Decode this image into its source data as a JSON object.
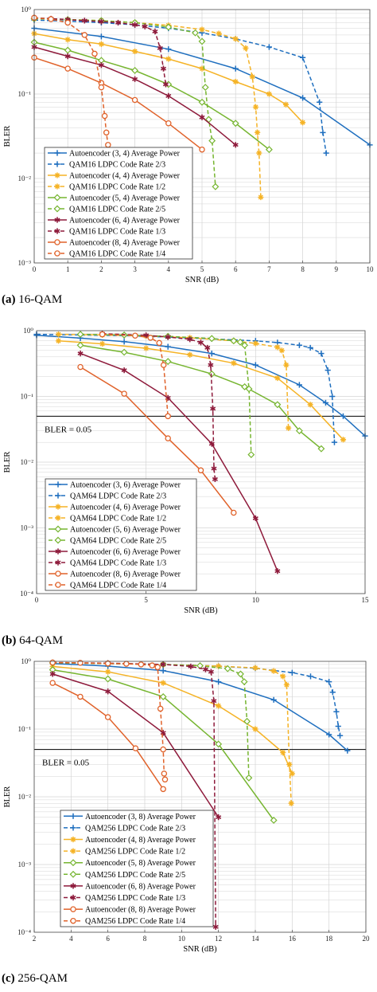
{
  "colors": {
    "s3": "#1f6fbf",
    "s4": "#f5b326",
    "s5": "#76b530",
    "s6": "#8e1a3b",
    "s8": "#e0622a",
    "grid": "#d4d4d4",
    "threshold": "#000000"
  },
  "captions": [
    {
      "letter": "(a)",
      "text": " 16-QAM"
    },
    {
      "letter": "(b)",
      "text": " 64-QAM"
    },
    {
      "letter": "(c)",
      "text": " 256-QAM"
    }
  ],
  "chart_data": [
    {
      "type": "line",
      "id": "a",
      "title": "",
      "xlabel": "SNR (dB)",
      "ylabel": "BLER",
      "xlim": [
        0,
        10
      ],
      "ylim": [
        0.001,
        1
      ],
      "yscale": "log",
      "grid": true,
      "legend_position": "bottom-left",
      "xticks": [
        "0",
        "1",
        "2",
        "3",
        "4",
        "5",
        "6",
        "7",
        "8",
        "9",
        "10"
      ],
      "yticks": [
        "10⁻³",
        "10⁻²",
        "10⁻¹",
        "10⁰"
      ],
      "threshold": null,
      "series": [
        {
          "name": "Autoencoder (3, 4) Average Power",
          "color_key": "s3",
          "dashed": false,
          "marker": "plus",
          "x": [
            0,
            2,
            4,
            6,
            8,
            10
          ],
          "y": [
            0.6,
            0.48,
            0.34,
            0.2,
            0.09,
            0.025
          ]
        },
        {
          "name": "QAM16 LDPC Code Rate 2/3",
          "color_key": "s3",
          "dashed": true,
          "marker": "plus",
          "x": [
            0,
            1,
            2,
            3,
            4,
            5,
            6,
            7,
            8,
            8.5,
            8.6,
            8.7
          ],
          "y": [
            0.75,
            0.73,
            0.7,
            0.66,
            0.6,
            0.53,
            0.45,
            0.36,
            0.27,
            0.08,
            0.035,
            0.02
          ]
        },
        {
          "name": "Autoencoder (4, 4) Average Power",
          "color_key": "s4",
          "dashed": false,
          "marker": "star",
          "x": [
            0,
            1,
            2,
            3,
            4,
            5,
            6,
            7,
            7.5,
            8
          ],
          "y": [
            0.52,
            0.44,
            0.39,
            0.32,
            0.26,
            0.2,
            0.14,
            0.1,
            0.075,
            0.046
          ]
        },
        {
          "name": "QAM16 LDPC Code Rate 1/2",
          "color_key": "s4",
          "dashed": true,
          "marker": "star",
          "x": [
            0,
            1,
            2,
            3,
            4,
            5,
            5.5,
            6,
            6.3,
            6.5,
            6.6,
            6.65,
            6.7,
            6.75
          ],
          "y": [
            0.78,
            0.76,
            0.74,
            0.7,
            0.65,
            0.58,
            0.52,
            0.45,
            0.35,
            0.16,
            0.07,
            0.035,
            0.02,
            0.006
          ]
        },
        {
          "name": "Autoencoder (5, 4) Average Power",
          "color_key": "s5",
          "dashed": false,
          "marker": "diamond",
          "x": [
            0,
            1,
            2,
            3,
            4,
            5,
            6,
            7
          ],
          "y": [
            0.41,
            0.33,
            0.25,
            0.19,
            0.13,
            0.08,
            0.045,
            0.022
          ]
        },
        {
          "name": "QAM16 LDPC Code Rate 2/5",
          "color_key": "s5",
          "dashed": true,
          "marker": "diamond",
          "x": [
            0,
            1,
            2,
            3,
            4,
            4.8,
            5,
            5.1,
            5.2,
            5.3,
            5.4
          ],
          "y": [
            0.78,
            0.76,
            0.74,
            0.7,
            0.62,
            0.53,
            0.42,
            0.12,
            0.05,
            0.028,
            0.008
          ]
        },
        {
          "name": "Autoencoder (6, 4) Average Power",
          "color_key": "s6",
          "dashed": false,
          "marker": "asterisk",
          "x": [
            0,
            1,
            2,
            3,
            4,
            5,
            6
          ],
          "y": [
            0.36,
            0.28,
            0.22,
            0.15,
            0.095,
            0.053,
            0.025
          ]
        },
        {
          "name": "QAM16 LDPC Code Rate 1/3",
          "color_key": "s6",
          "dashed": true,
          "marker": "asterisk",
          "x": [
            0,
            0.5,
            1,
            1.5,
            2,
            2.5,
            3,
            3.3,
            3.6,
            3.75,
            3.85,
            3.92
          ],
          "y": [
            0.8,
            0.78,
            0.76,
            0.74,
            0.72,
            0.7,
            0.66,
            0.63,
            0.55,
            0.35,
            0.2,
            0.13
          ]
        },
        {
          "name": "Autoencoder (8, 4) Average Power",
          "color_key": "s8",
          "dashed": false,
          "marker": "circle",
          "x": [
            0,
            1,
            2,
            3,
            4,
            5
          ],
          "y": [
            0.27,
            0.2,
            0.135,
            0.085,
            0.045,
            0.022
          ]
        },
        {
          "name": "QAM16 LDPC Code Rate 1/4",
          "color_key": "s8",
          "dashed": true,
          "marker": "circle",
          "x": [
            0,
            0.5,
            1,
            1.5,
            1.8,
            2.0,
            2.1,
            2.15,
            2.2
          ],
          "y": [
            0.8,
            0.77,
            0.7,
            0.5,
            0.3,
            0.12,
            0.055,
            0.035,
            0.025
          ]
        }
      ]
    },
    {
      "type": "line",
      "id": "b",
      "title": "",
      "xlabel": "SNR (dB)",
      "ylabel": "BLER",
      "xlim": [
        0,
        15
      ],
      "ylim": [
        0.0001,
        1
      ],
      "yscale": "log",
      "grid": true,
      "legend_position": "bottom-left",
      "xticks": [
        "0",
        "5",
        "10",
        "15"
      ],
      "yticks": [
        "10⁻⁴",
        "10⁻³",
        "10⁻²",
        "10⁻¹",
        "10⁰"
      ],
      "threshold": {
        "value": 0.05,
        "label": "BLER = 0.05"
      },
      "series": [
        {
          "name": "Autoencoder (3, 6) Average Power",
          "color_key": "s3",
          "dashed": false,
          "marker": "plus",
          "x": [
            0,
            2,
            4,
            6,
            8,
            10,
            12,
            13.2,
            14,
            15
          ],
          "y": [
            0.85,
            0.77,
            0.68,
            0.57,
            0.45,
            0.3,
            0.15,
            0.08,
            0.05,
            0.025
          ]
        },
        {
          "name": "QAM64 LDPC Code Rate 2/3",
          "color_key": "s3",
          "dashed": true,
          "marker": "plus",
          "x": [
            0,
            2,
            4,
            6,
            8,
            10,
            11,
            12,
            12.5,
            13,
            13.3,
            13.5,
            13.6
          ],
          "y": [
            0.88,
            0.86,
            0.84,
            0.8,
            0.75,
            0.7,
            0.66,
            0.6,
            0.55,
            0.45,
            0.25,
            0.1,
            0.02
          ]
        },
        {
          "name": "Autoencoder (4, 6) Average Power",
          "color_key": "s4",
          "dashed": false,
          "marker": "star",
          "x": [
            1,
            3,
            5,
            7,
            9,
            11,
            12.5,
            14
          ],
          "y": [
            0.7,
            0.63,
            0.54,
            0.43,
            0.32,
            0.19,
            0.075,
            0.022
          ]
        },
        {
          "name": "QAM64 LDPC Code Rate 1/2",
          "color_key": "s4",
          "dashed": true,
          "marker": "star",
          "x": [
            1,
            3,
            5,
            7,
            9,
            10,
            11,
            11.2,
            11.4,
            11.5
          ],
          "y": [
            0.88,
            0.86,
            0.83,
            0.78,
            0.7,
            0.64,
            0.56,
            0.5,
            0.3,
            0.033
          ]
        },
        {
          "name": "Autoencoder (5, 6) Average Power",
          "color_key": "s5",
          "dashed": false,
          "marker": "diamond",
          "x": [
            2,
            4,
            6,
            8,
            9.5,
            11,
            12,
            13
          ],
          "y": [
            0.6,
            0.47,
            0.34,
            0.22,
            0.14,
            0.075,
            0.03,
            0.016
          ]
        },
        {
          "name": "QAM64 LDPC Code Rate 2/5",
          "color_key": "s5",
          "dashed": true,
          "marker": "diamond",
          "x": [
            2,
            4,
            6,
            8,
            9,
            9.3,
            9.5,
            9.7,
            9.8
          ],
          "y": [
            0.88,
            0.86,
            0.82,
            0.76,
            0.7,
            0.67,
            0.6,
            0.13,
            0.013
          ]
        },
        {
          "name": "Autoencoder (6, 6) Average Power",
          "color_key": "s6",
          "dashed": false,
          "marker": "asterisk",
          "x": [
            2,
            4,
            6,
            8,
            10,
            11
          ],
          "y": [
            0.45,
            0.25,
            0.095,
            0.019,
            0.0014,
            0.00022
          ]
        },
        {
          "name": "QAM64 LDPC Code Rate 1/3",
          "color_key": "s6",
          "dashed": true,
          "marker": "asterisk",
          "x": [
            3,
            5,
            6,
            7,
            7.5,
            7.8,
            7.95,
            8.05,
            8.1,
            8.15
          ],
          "y": [
            0.9,
            0.85,
            0.8,
            0.74,
            0.66,
            0.55,
            0.3,
            0.065,
            0.008,
            0.0055
          ]
        },
        {
          "name": "Autoencoder (8, 6) Average Power",
          "color_key": "s8",
          "dashed": false,
          "marker": "circle",
          "x": [
            2,
            4,
            6,
            7.5,
            9
          ],
          "y": [
            0.28,
            0.11,
            0.023,
            0.0075,
            0.0017
          ]
        },
        {
          "name": "QAM64 LDPC Code Rate 1/4",
          "color_key": "s8",
          "dashed": true,
          "marker": "circle",
          "x": [
            3,
            4.5,
            5.2,
            5.6,
            5.8,
            6.0
          ],
          "y": [
            0.88,
            0.84,
            0.78,
            0.65,
            0.3,
            0.05
          ]
        }
      ]
    },
    {
      "type": "line",
      "id": "c",
      "title": "",
      "xlabel": "SNR (dB)",
      "ylabel": "BLER",
      "xlim": [
        2,
        20
      ],
      "ylim": [
        0.0001,
        1
      ],
      "yscale": "log",
      "grid": true,
      "legend_position": "bottom-left",
      "xticks": [
        "2",
        "4",
        "6",
        "8",
        "10",
        "12",
        "14",
        "16",
        "18",
        "20"
      ],
      "yticks": [
        "10⁻⁴",
        "10⁻³",
        "10⁻²",
        "10⁻¹",
        "10⁰"
      ],
      "threshold": {
        "value": 0.05,
        "label": "BLER = 0.05"
      },
      "series": [
        {
          "name": "Autoencoder (3, 8) Average Power",
          "color_key": "s3",
          "dashed": false,
          "marker": "plus",
          "x": [
            3,
            6,
            9,
            12,
            15,
            18,
            19
          ],
          "y": [
            0.93,
            0.85,
            0.73,
            0.5,
            0.27,
            0.083,
            0.048
          ]
        },
        {
          "name": "QAM256 LDPC Code Rate 2/3",
          "color_key": "s3",
          "dashed": true,
          "marker": "plus",
          "x": [
            3,
            6,
            9,
            12,
            14,
            16,
            17,
            18,
            18.2,
            18.4,
            18.5,
            18.6
          ],
          "y": [
            0.95,
            0.93,
            0.9,
            0.85,
            0.79,
            0.68,
            0.6,
            0.5,
            0.35,
            0.18,
            0.11,
            0.08
          ]
        },
        {
          "name": "Autoencoder (4, 8) Average Power",
          "color_key": "s4",
          "dashed": false,
          "marker": "star",
          "x": [
            3,
            6,
            9,
            12,
            14,
            15.5,
            16
          ],
          "y": [
            0.84,
            0.7,
            0.48,
            0.22,
            0.1,
            0.045,
            0.022
          ]
        },
        {
          "name": "QAM256 LDPC Code Rate 1/2",
          "color_key": "s4",
          "dashed": true,
          "marker": "star",
          "x": [
            3,
            6,
            9,
            12,
            14,
            15,
            15.5,
            15.7,
            15.85,
            15.95
          ],
          "y": [
            0.95,
            0.93,
            0.9,
            0.85,
            0.8,
            0.72,
            0.6,
            0.45,
            0.03,
            0.008
          ]
        },
        {
          "name": "Autoencoder (5, 8) Average Power",
          "color_key": "s5",
          "dashed": false,
          "marker": "diamond",
          "x": [
            3,
            6,
            9,
            12,
            15
          ],
          "y": [
            0.75,
            0.55,
            0.3,
            0.06,
            0.0045
          ]
        },
        {
          "name": "QAM256 LDPC Code Rate 2/5",
          "color_key": "s5",
          "dashed": true,
          "marker": "diamond",
          "x": [
            3,
            6,
            9,
            11,
            12.5,
            13.2,
            13.4,
            13.55,
            13.65
          ],
          "y": [
            0.95,
            0.93,
            0.9,
            0.86,
            0.78,
            0.65,
            0.5,
            0.13,
            0.019
          ]
        },
        {
          "name": "Autoencoder (6, 8) Average Power",
          "color_key": "s6",
          "dashed": false,
          "marker": "asterisk",
          "x": [
            3,
            6,
            9,
            12
          ],
          "y": [
            0.65,
            0.36,
            0.088,
            0.005
          ]
        },
        {
          "name": "QAM256 LDPC Code Rate 1/3",
          "color_key": "s6",
          "dashed": true,
          "marker": "asterisk",
          "x": [
            3,
            6,
            9,
            10.5,
            11.3,
            11.6,
            11.75,
            11.85
          ],
          "y": [
            0.96,
            0.94,
            0.9,
            0.84,
            0.76,
            0.7,
            0.26,
            0.00012
          ]
        },
        {
          "name": "Autoencoder (8, 8) Average Power",
          "color_key": "s8",
          "dashed": false,
          "marker": "circle",
          "x": [
            3,
            4.5,
            6,
            7.5,
            9
          ],
          "y": [
            0.48,
            0.3,
            0.15,
            0.052,
            0.013
          ]
        },
        {
          "name": "QAM256 LDPC Code Rate 1/4",
          "color_key": "s8",
          "dashed": true,
          "marker": "circle",
          "x": [
            3,
            4.5,
            6,
            7,
            7.8,
            8.4,
            8.7,
            8.85,
            9.0,
            9.05,
            9.1
          ],
          "y": [
            0.96,
            0.95,
            0.93,
            0.92,
            0.9,
            0.87,
            0.82,
            0.2,
            0.05,
            0.022,
            0.018
          ]
        }
      ]
    }
  ]
}
